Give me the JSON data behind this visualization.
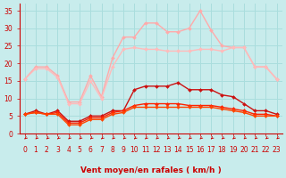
{
  "x": [
    0,
    1,
    2,
    3,
    4,
    5,
    6,
    7,
    8,
    9,
    10,
    11,
    12,
    13,
    14,
    15,
    16,
    17,
    18,
    19,
    20,
    21,
    22,
    23
  ],
  "series": [
    {
      "name": "rafales_max",
      "color": "#ffaaaa",
      "linewidth": 1.0,
      "marker": "D",
      "markersize": 2.0,
      "y": [
        15.5,
        19.0,
        19.0,
        16.5,
        9.0,
        9.0,
        16.5,
        10.5,
        21.5,
        27.5,
        27.5,
        31.5,
        31.5,
        29.0,
        29.0,
        30.0,
        35.0,
        29.5,
        25.0,
        24.5,
        24.5,
        19.0,
        19.0,
        15.5
      ]
    },
    {
      "name": "vent_max",
      "color": "#ffbbbb",
      "linewidth": 1.0,
      "marker": "D",
      "markersize": 2.0,
      "y": [
        15.5,
        18.5,
        18.5,
        16.0,
        8.5,
        8.5,
        15.0,
        10.0,
        19.0,
        24.0,
        24.5,
        24.0,
        24.0,
        23.5,
        23.5,
        23.5,
        24.0,
        24.0,
        23.5,
        24.5,
        24.5,
        19.0,
        19.0,
        15.5
      ]
    },
    {
      "name": "rafales_moy",
      "color": "#cc1111",
      "linewidth": 1.0,
      "marker": "D",
      "markersize": 2.0,
      "y": [
        5.5,
        6.5,
        5.5,
        6.5,
        3.5,
        3.5,
        5.0,
        5.0,
        6.5,
        6.5,
        12.5,
        13.5,
        13.5,
        13.5,
        14.5,
        12.5,
        12.5,
        12.5,
        11.0,
        10.5,
        8.5,
        6.5,
        6.5,
        5.5
      ]
    },
    {
      "name": "vent_moy",
      "color": "#ff2200",
      "linewidth": 1.0,
      "marker": "D",
      "markersize": 2.0,
      "y": [
        5.5,
        6.0,
        5.5,
        6.0,
        3.0,
        3.0,
        4.5,
        4.5,
        6.0,
        6.5,
        8.0,
        8.5,
        8.5,
        8.5,
        8.5,
        8.0,
        8.0,
        8.0,
        7.5,
        7.0,
        6.5,
        5.5,
        5.5,
        5.0
      ]
    },
    {
      "name": "vent_min",
      "color": "#ff4400",
      "linewidth": 1.0,
      "marker": "D",
      "markersize": 2.0,
      "y": [
        5.5,
        6.0,
        5.5,
        5.5,
        2.5,
        2.5,
        4.0,
        4.0,
        5.5,
        6.0,
        7.5,
        7.5,
        7.5,
        7.5,
        7.5,
        7.5,
        7.5,
        7.5,
        7.0,
        6.5,
        6.0,
        5.0,
        5.0,
        5.0
      ]
    }
  ],
  "xlim": [
    -0.5,
    23.5
  ],
  "ylim": [
    0,
    37
  ],
  "yticks": [
    0,
    5,
    10,
    15,
    20,
    25,
    30,
    35
  ],
  "xlabel": "Vent moyen/en rafales ( km/h )",
  "bg_color": "#c8ecec",
  "grid_color": "#aadddd",
  "axis_color": "#cc0000",
  "text_color": "#cc0000",
  "arrow_color": "#cc0000",
  "tick_fontsize": 5.5,
  "label_fontsize": 6.5
}
